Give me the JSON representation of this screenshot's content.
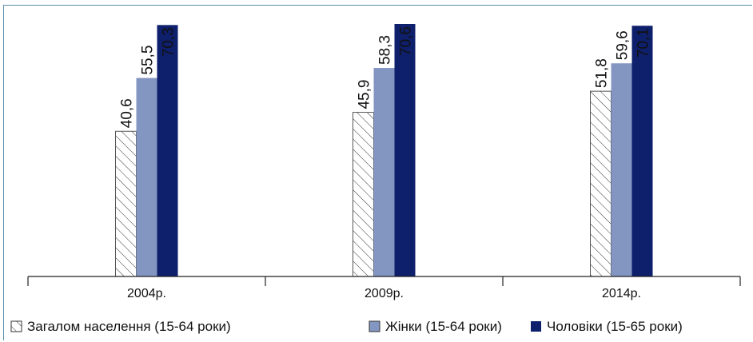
{
  "chart_data": {
    "type": "bar",
    "categories": [
      "2004р.",
      "2009р.",
      "2014р."
    ],
    "series": [
      {
        "name": "Загалом населення (15-64 роки)",
        "values": [
          40.6,
          45.9,
          51.8
        ],
        "labels": [
          "40,6",
          "45,9",
          "51,8"
        ],
        "pattern": "hatch",
        "color": "#ffffff"
      },
      {
        "name": "Жінки (15-64 роки)",
        "values": [
          55.5,
          58.3,
          59.6
        ],
        "labels": [
          "55,5",
          "58,3",
          "59,6"
        ],
        "pattern": "solid",
        "color": "#8395c1"
      },
      {
        "name": "Чоловіки (15-65 роки)",
        "values": [
          70.3,
          70.6,
          70.1
        ],
        "labels": [
          "70,3",
          "70,6",
          "70,1"
        ],
        "pattern": "solid",
        "color": "#0e1f6b"
      }
    ],
    "ylim": [
      0,
      70.6
    ],
    "grid": false,
    "legend_position": "bottom"
  }
}
